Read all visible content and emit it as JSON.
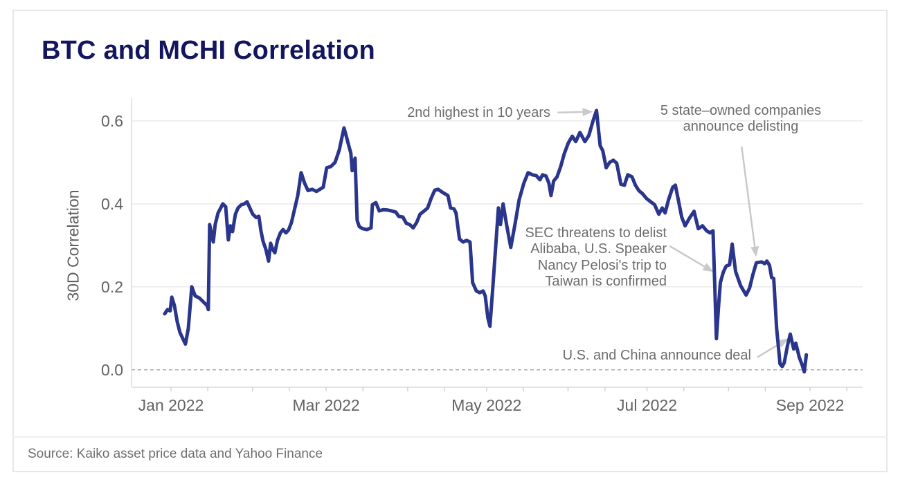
{
  "title": "BTC and MCHI Correlation",
  "source": "Source: Kaiko asset price data and Yahoo Finance",
  "colors": {
    "line": "#2a358c",
    "title": "#14155f",
    "grid": "#ececec",
    "zero_line": "#b3b3b3",
    "axis": "#dcdcdc",
    "minor_tick": "#d2d2d2",
    "tick_text": "#636363",
    "annotation_text": "#6d6d6d",
    "arrow": "#c9c9c9"
  },
  "chart_data": {
    "type": "line",
    "title": "BTC and MCHI Correlation",
    "xlabel": "",
    "ylabel": "30D Correlation",
    "x_unit": "days since 2022-01-01",
    "xlim": [
      -15,
      263
    ],
    "ylim": [
      -0.042,
      0.658
    ],
    "grid": "horizontal",
    "zero_line_dashed": true,
    "y_ticks": [
      {
        "value": 0.0,
        "label": "0.0"
      },
      {
        "value": 0.2,
        "label": "0.2"
      },
      {
        "value": 0.4,
        "label": "0.4"
      },
      {
        "value": 0.6,
        "label": "0.6"
      }
    ],
    "x_ticks": [
      {
        "day": 0,
        "label": "Jan 2022"
      },
      {
        "day": 59,
        "label": "Mar 2022"
      },
      {
        "day": 120,
        "label": "May 2022"
      },
      {
        "day": 181,
        "label": "Jul 2022"
      },
      {
        "day": 243,
        "label": "Sep 2022"
      }
    ],
    "x_minor_tick_days": [
      0,
      14,
      31,
      45,
      59,
      73,
      90,
      104,
      120,
      134,
      151,
      165,
      181,
      195,
      212,
      226,
      243,
      257
    ],
    "series": [
      {
        "name": "BTC and MCHI 30D correlation",
        "points": [
          [
            -2.4,
            0.135
          ],
          [
            -1.3,
            0.145
          ],
          [
            -0.3,
            0.142
          ],
          [
            0.3,
            0.175
          ],
          [
            1.3,
            0.155
          ],
          [
            2.4,
            0.115
          ],
          [
            3.4,
            0.09
          ],
          [
            4.5,
            0.075
          ],
          [
            5.5,
            0.062
          ],
          [
            6.6,
            0.1
          ],
          [
            7.9,
            0.2
          ],
          [
            9.2,
            0.178
          ],
          [
            10.8,
            0.173
          ],
          [
            12.4,
            0.163
          ],
          [
            13.7,
            0.155
          ],
          [
            14.2,
            0.145
          ],
          [
            14.7,
            0.35
          ],
          [
            15.5,
            0.325
          ],
          [
            16.1,
            0.308
          ],
          [
            16.8,
            0.35
          ],
          [
            17.9,
            0.378
          ],
          [
            18.9,
            0.39
          ],
          [
            19.7,
            0.4
          ],
          [
            20.8,
            0.393
          ],
          [
            21.8,
            0.313
          ],
          [
            22.6,
            0.347
          ],
          [
            23.4,
            0.333
          ],
          [
            24.5,
            0.375
          ],
          [
            25.5,
            0.39
          ],
          [
            26.8,
            0.398
          ],
          [
            27.9,
            0.4
          ],
          [
            28.9,
            0.405
          ],
          [
            30.0,
            0.39
          ],
          [
            31.1,
            0.375
          ],
          [
            32.4,
            0.367
          ],
          [
            33.4,
            0.37
          ],
          [
            34.2,
            0.335
          ],
          [
            35.0,
            0.31
          ],
          [
            36.1,
            0.29
          ],
          [
            37.1,
            0.262
          ],
          [
            37.9,
            0.305
          ],
          [
            38.7,
            0.29
          ],
          [
            39.5,
            0.282
          ],
          [
            40.5,
            0.312
          ],
          [
            41.6,
            0.33
          ],
          [
            42.6,
            0.338
          ],
          [
            43.7,
            0.33
          ],
          [
            44.7,
            0.337
          ],
          [
            45.8,
            0.355
          ],
          [
            47.1,
            0.39
          ],
          [
            48.2,
            0.42
          ],
          [
            49.5,
            0.475
          ],
          [
            50.8,
            0.45
          ],
          [
            52.1,
            0.432
          ],
          [
            53.7,
            0.435
          ],
          [
            55.3,
            0.43
          ],
          [
            56.6,
            0.435
          ],
          [
            57.9,
            0.44
          ],
          [
            59.2,
            0.487
          ],
          [
            60.8,
            0.49
          ],
          [
            62.4,
            0.5
          ],
          [
            64.0,
            0.53
          ],
          [
            65.0,
            0.56
          ],
          [
            65.8,
            0.583
          ],
          [
            66.8,
            0.56
          ],
          [
            67.6,
            0.54
          ],
          [
            68.4,
            0.522
          ],
          [
            68.9,
            0.48
          ],
          [
            70.0,
            0.51
          ],
          [
            70.8,
            0.36
          ],
          [
            71.6,
            0.345
          ],
          [
            72.9,
            0.34
          ],
          [
            74.5,
            0.338
          ],
          [
            76.1,
            0.342
          ],
          [
            76.6,
            0.398
          ],
          [
            77.9,
            0.403
          ],
          [
            79.2,
            0.383
          ],
          [
            80.8,
            0.386
          ],
          [
            82.4,
            0.385
          ],
          [
            83.9,
            0.383
          ],
          [
            85.5,
            0.38
          ],
          [
            86.6,
            0.37
          ],
          [
            88.2,
            0.368
          ],
          [
            89.5,
            0.353
          ],
          [
            90.8,
            0.35
          ],
          [
            92.1,
            0.342
          ],
          [
            93.4,
            0.355
          ],
          [
            94.7,
            0.375
          ],
          [
            96.3,
            0.383
          ],
          [
            97.6,
            0.39
          ],
          [
            98.9,
            0.413
          ],
          [
            100.3,
            0.433
          ],
          [
            101.6,
            0.435
          ],
          [
            103.4,
            0.427
          ],
          [
            105.3,
            0.42
          ],
          [
            106.3,
            0.39
          ],
          [
            107.6,
            0.388
          ],
          [
            108.4,
            0.378
          ],
          [
            109.7,
            0.315
          ],
          [
            111.1,
            0.308
          ],
          [
            112.4,
            0.312
          ],
          [
            113.7,
            0.308
          ],
          [
            114.7,
            0.21
          ],
          [
            116.1,
            0.19
          ],
          [
            117.4,
            0.186
          ],
          [
            118.7,
            0.19
          ],
          [
            119.5,
            0.178
          ],
          [
            120.5,
            0.125
          ],
          [
            121.3,
            0.105
          ],
          [
            122.4,
            0.2
          ],
          [
            123.4,
            0.29
          ],
          [
            124.5,
            0.39
          ],
          [
            125.3,
            0.35
          ],
          [
            126.3,
            0.4
          ],
          [
            127.6,
            0.35
          ],
          [
            129.2,
            0.295
          ],
          [
            130.8,
            0.35
          ],
          [
            132.4,
            0.41
          ],
          [
            134.2,
            0.45
          ],
          [
            135.8,
            0.475
          ],
          [
            137.4,
            0.47
          ],
          [
            138.9,
            0.468
          ],
          [
            140.3,
            0.458
          ],
          [
            141.3,
            0.47
          ],
          [
            142.6,
            0.467
          ],
          [
            143.7,
            0.45
          ],
          [
            144.5,
            0.42
          ],
          [
            145.5,
            0.455
          ],
          [
            146.8,
            0.465
          ],
          [
            148.2,
            0.49
          ],
          [
            149.5,
            0.52
          ],
          [
            151.1,
            0.547
          ],
          [
            152.6,
            0.563
          ],
          [
            153.9,
            0.55
          ],
          [
            155.5,
            0.572
          ],
          [
            157.4,
            0.55
          ],
          [
            158.9,
            0.565
          ],
          [
            160.5,
            0.6
          ],
          [
            161.8,
            0.625
          ],
          [
            163.2,
            0.54
          ],
          [
            164.2,
            0.528
          ],
          [
            165.5,
            0.487
          ],
          [
            166.8,
            0.5
          ],
          [
            168.2,
            0.505
          ],
          [
            169.5,
            0.498
          ],
          [
            171.1,
            0.447
          ],
          [
            172.4,
            0.445
          ],
          [
            173.7,
            0.47
          ],
          [
            175.3,
            0.465
          ],
          [
            176.6,
            0.445
          ],
          [
            177.9,
            0.432
          ],
          [
            179.2,
            0.425
          ],
          [
            180.8,
            0.413
          ],
          [
            182.4,
            0.405
          ],
          [
            183.9,
            0.398
          ],
          [
            185.5,
            0.375
          ],
          [
            186.8,
            0.39
          ],
          [
            187.9,
            0.378
          ],
          [
            189.2,
            0.41
          ],
          [
            190.8,
            0.44
          ],
          [
            191.8,
            0.445
          ],
          [
            193.2,
            0.4
          ],
          [
            194.2,
            0.368
          ],
          [
            195.5,
            0.347
          ],
          [
            197.1,
            0.365
          ],
          [
            198.9,
            0.382
          ],
          [
            200.5,
            0.34
          ],
          [
            202.1,
            0.347
          ],
          [
            203.7,
            0.335
          ],
          [
            205.0,
            0.33
          ],
          [
            206.1,
            0.335
          ],
          [
            206.8,
            0.2
          ],
          [
            207.4,
            0.075
          ],
          [
            208.2,
            0.15
          ],
          [
            208.9,
            0.21
          ],
          [
            210.0,
            0.235
          ],
          [
            211.1,
            0.25
          ],
          [
            212.4,
            0.253
          ],
          [
            213.4,
            0.303
          ],
          [
            214.7,
            0.237
          ],
          [
            216.6,
            0.203
          ],
          [
            218.7,
            0.18
          ],
          [
            220.0,
            0.197
          ],
          [
            221.3,
            0.23
          ],
          [
            222.6,
            0.258
          ],
          [
            224.5,
            0.26
          ],
          [
            225.8,
            0.256
          ],
          [
            226.6,
            0.262
          ],
          [
            227.6,
            0.252
          ],
          [
            228.4,
            0.222
          ],
          [
            229.2,
            0.22
          ],
          [
            230.3,
            0.1
          ],
          [
            231.6,
            0.014
          ],
          [
            232.4,
            0.008
          ],
          [
            233.2,
            0.017
          ],
          [
            234.5,
            0.06
          ],
          [
            235.5,
            0.086
          ],
          [
            236.8,
            0.05
          ],
          [
            237.6,
            0.064
          ],
          [
            238.9,
            0.03
          ],
          [
            240.0,
            0.012
          ],
          [
            240.8,
            -0.005
          ],
          [
            241.6,
            0.036
          ]
        ]
      }
    ],
    "annotations": [
      {
        "text": "2nd highest in 10 years",
        "arrow": {
          "from": [
            147.0,
            0.62
          ],
          "to": [
            160.5,
            0.622
          ]
        }
      },
      {
        "text": "5 state–owned companies\nannounce delisting",
        "arrow": {
          "from": [
            217.0,
            0.538
          ],
          "to": [
            222.5,
            0.272
          ]
        }
      },
      {
        "text": "SEC threatens to delist\nAlibaba, U.S. Speaker\nNancy Pelosi's trip to\nTaiwan is confirmed",
        "arrow": {
          "from": [
            189.7,
            0.298
          ],
          "to": [
            206.3,
            0.236
          ]
        }
      },
      {
        "text": "U.S. and China announce deal",
        "arrow": {
          "from": [
            222.9,
            0.03
          ],
          "to": [
            234.7,
            0.075
          ]
        }
      }
    ]
  }
}
